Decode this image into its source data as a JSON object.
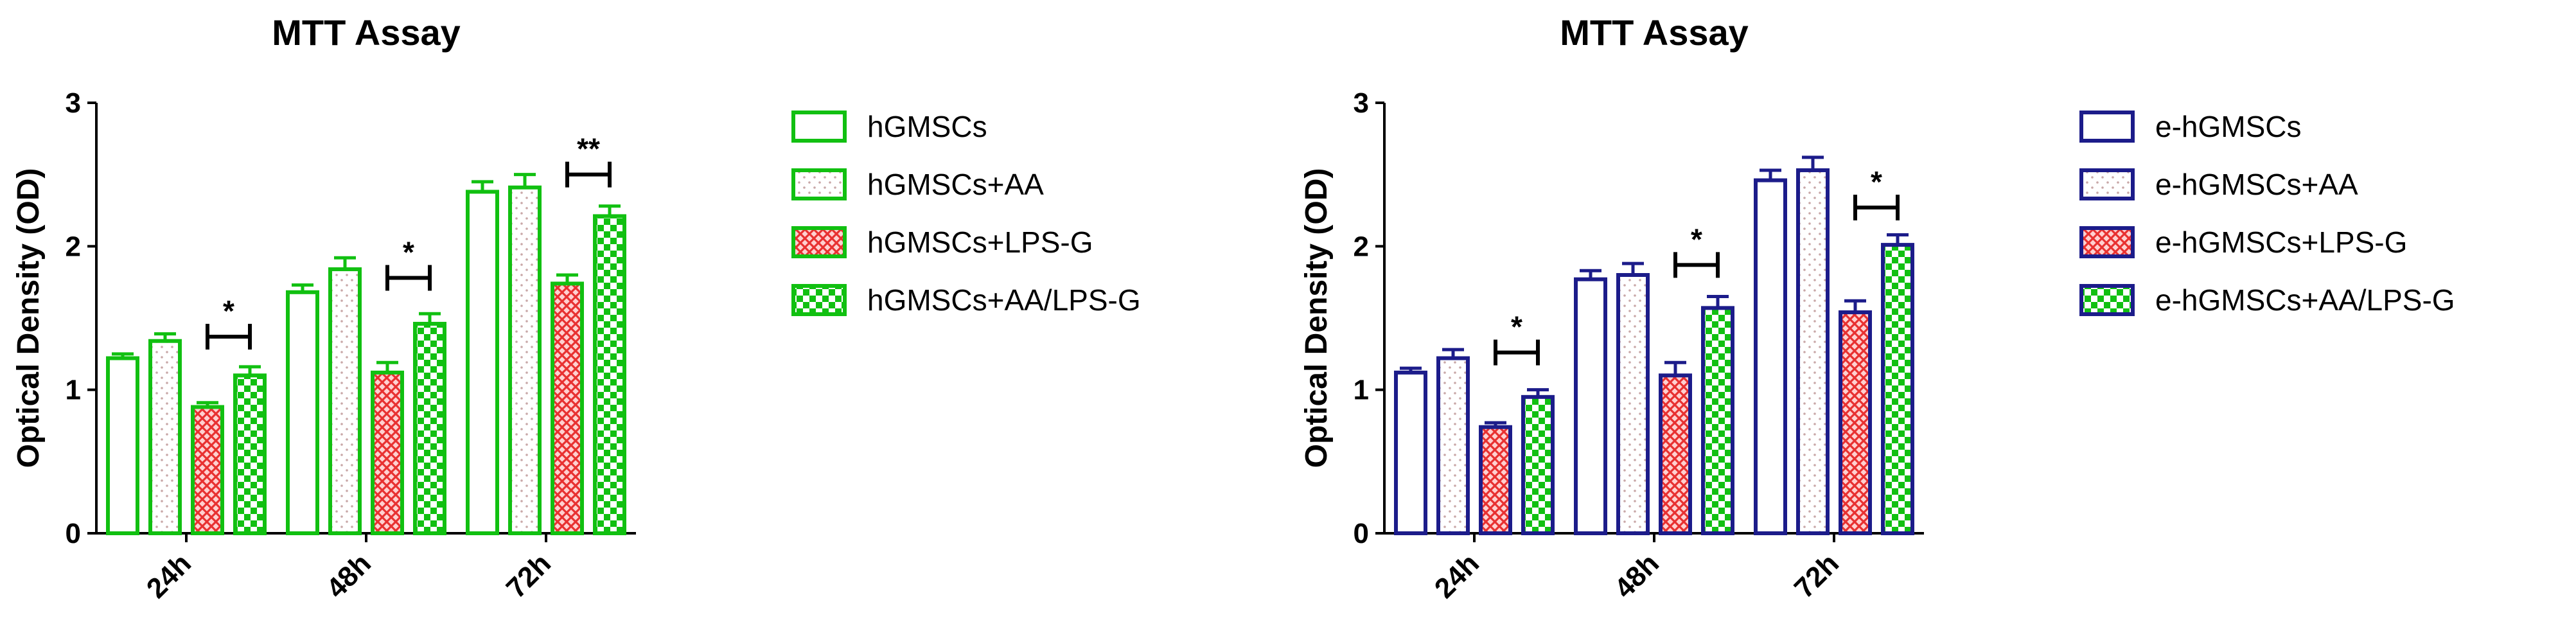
{
  "chart_data": [
    {
      "type": "bar",
      "title": "MTT Assay",
      "xlabel": "",
      "ylabel": "Optical Density (OD)",
      "ylim": [
        0,
        3
      ],
      "yticks": [
        "0",
        "1",
        "2",
        "3"
      ],
      "categories": [
        "24h",
        "48h",
        "72h"
      ],
      "legend_position": "right",
      "grid": false,
      "series": [
        {
          "name": "hGMSCs",
          "pattern": "none",
          "values": [
            1.22,
            1.68,
            2.38
          ],
          "errors": [
            0.03,
            0.05,
            0.07
          ]
        },
        {
          "name": "hGMSCs+AA",
          "pattern": "dots",
          "values": [
            1.34,
            1.84,
            2.41
          ],
          "errors": [
            0.05,
            0.08,
            0.09
          ]
        },
        {
          "name": "hGMSCs+LPS-G",
          "pattern": "red-crosshatch",
          "values": [
            0.88,
            1.12,
            1.74
          ],
          "errors": [
            0.03,
            0.07,
            0.06
          ]
        },
        {
          "name": "hGMSCs+AA/LPS-G",
          "pattern": "checker",
          "values": [
            1.1,
            1.46,
            2.21
          ],
          "errors": [
            0.06,
            0.07,
            0.07
          ]
        }
      ],
      "annotations": [
        {
          "category": "24h",
          "label": "*",
          "y": 1.37
        },
        {
          "category": "48h",
          "label": "*",
          "y": 1.78
        },
        {
          "category": "72h",
          "label": "**",
          "y": 2.5
        }
      ],
      "colors": {
        "outline": "#11c011",
        "hatch_red": "#e83030",
        "dots": "#c9a8a8"
      }
    },
    {
      "type": "bar",
      "title": "MTT Assay",
      "xlabel": "",
      "ylabel": "Optical Density (OD)",
      "ylim": [
        0,
        3
      ],
      "yticks": [
        "0",
        "1",
        "2",
        "3"
      ],
      "categories": [
        "24h",
        "48h",
        "72h"
      ],
      "legend_position": "right",
      "grid": false,
      "series": [
        {
          "name": "e-hGMSCs",
          "pattern": "none",
          "values": [
            1.12,
            1.77,
            2.46
          ],
          "errors": [
            0.03,
            0.06,
            0.07
          ]
        },
        {
          "name": "e-hGMSCs+AA",
          "pattern": "dots",
          "values": [
            1.22,
            1.8,
            2.53
          ],
          "errors": [
            0.06,
            0.08,
            0.09
          ]
        },
        {
          "name": "e-hGMSCs+LPS-G",
          "pattern": "red-crosshatch",
          "values": [
            0.74,
            1.1,
            1.54
          ],
          "errors": [
            0.03,
            0.09,
            0.08
          ]
        },
        {
          "name": "e-hGMSCs+AA/LPS-G",
          "pattern": "checker",
          "values": [
            0.95,
            1.57,
            2.01
          ],
          "errors": [
            0.05,
            0.08,
            0.07
          ]
        }
      ],
      "annotations": [
        {
          "category": "24h",
          "label": "*",
          "y": 1.26
        },
        {
          "category": "48h",
          "label": "*",
          "y": 1.87
        },
        {
          "category": "72h",
          "label": "*",
          "y": 2.27
        }
      ],
      "colors": {
        "outline": "#1c1c8a",
        "hatch_red": "#e83030",
        "dots": "#c9a8a8",
        "checker": "#11c011"
      }
    }
  ]
}
